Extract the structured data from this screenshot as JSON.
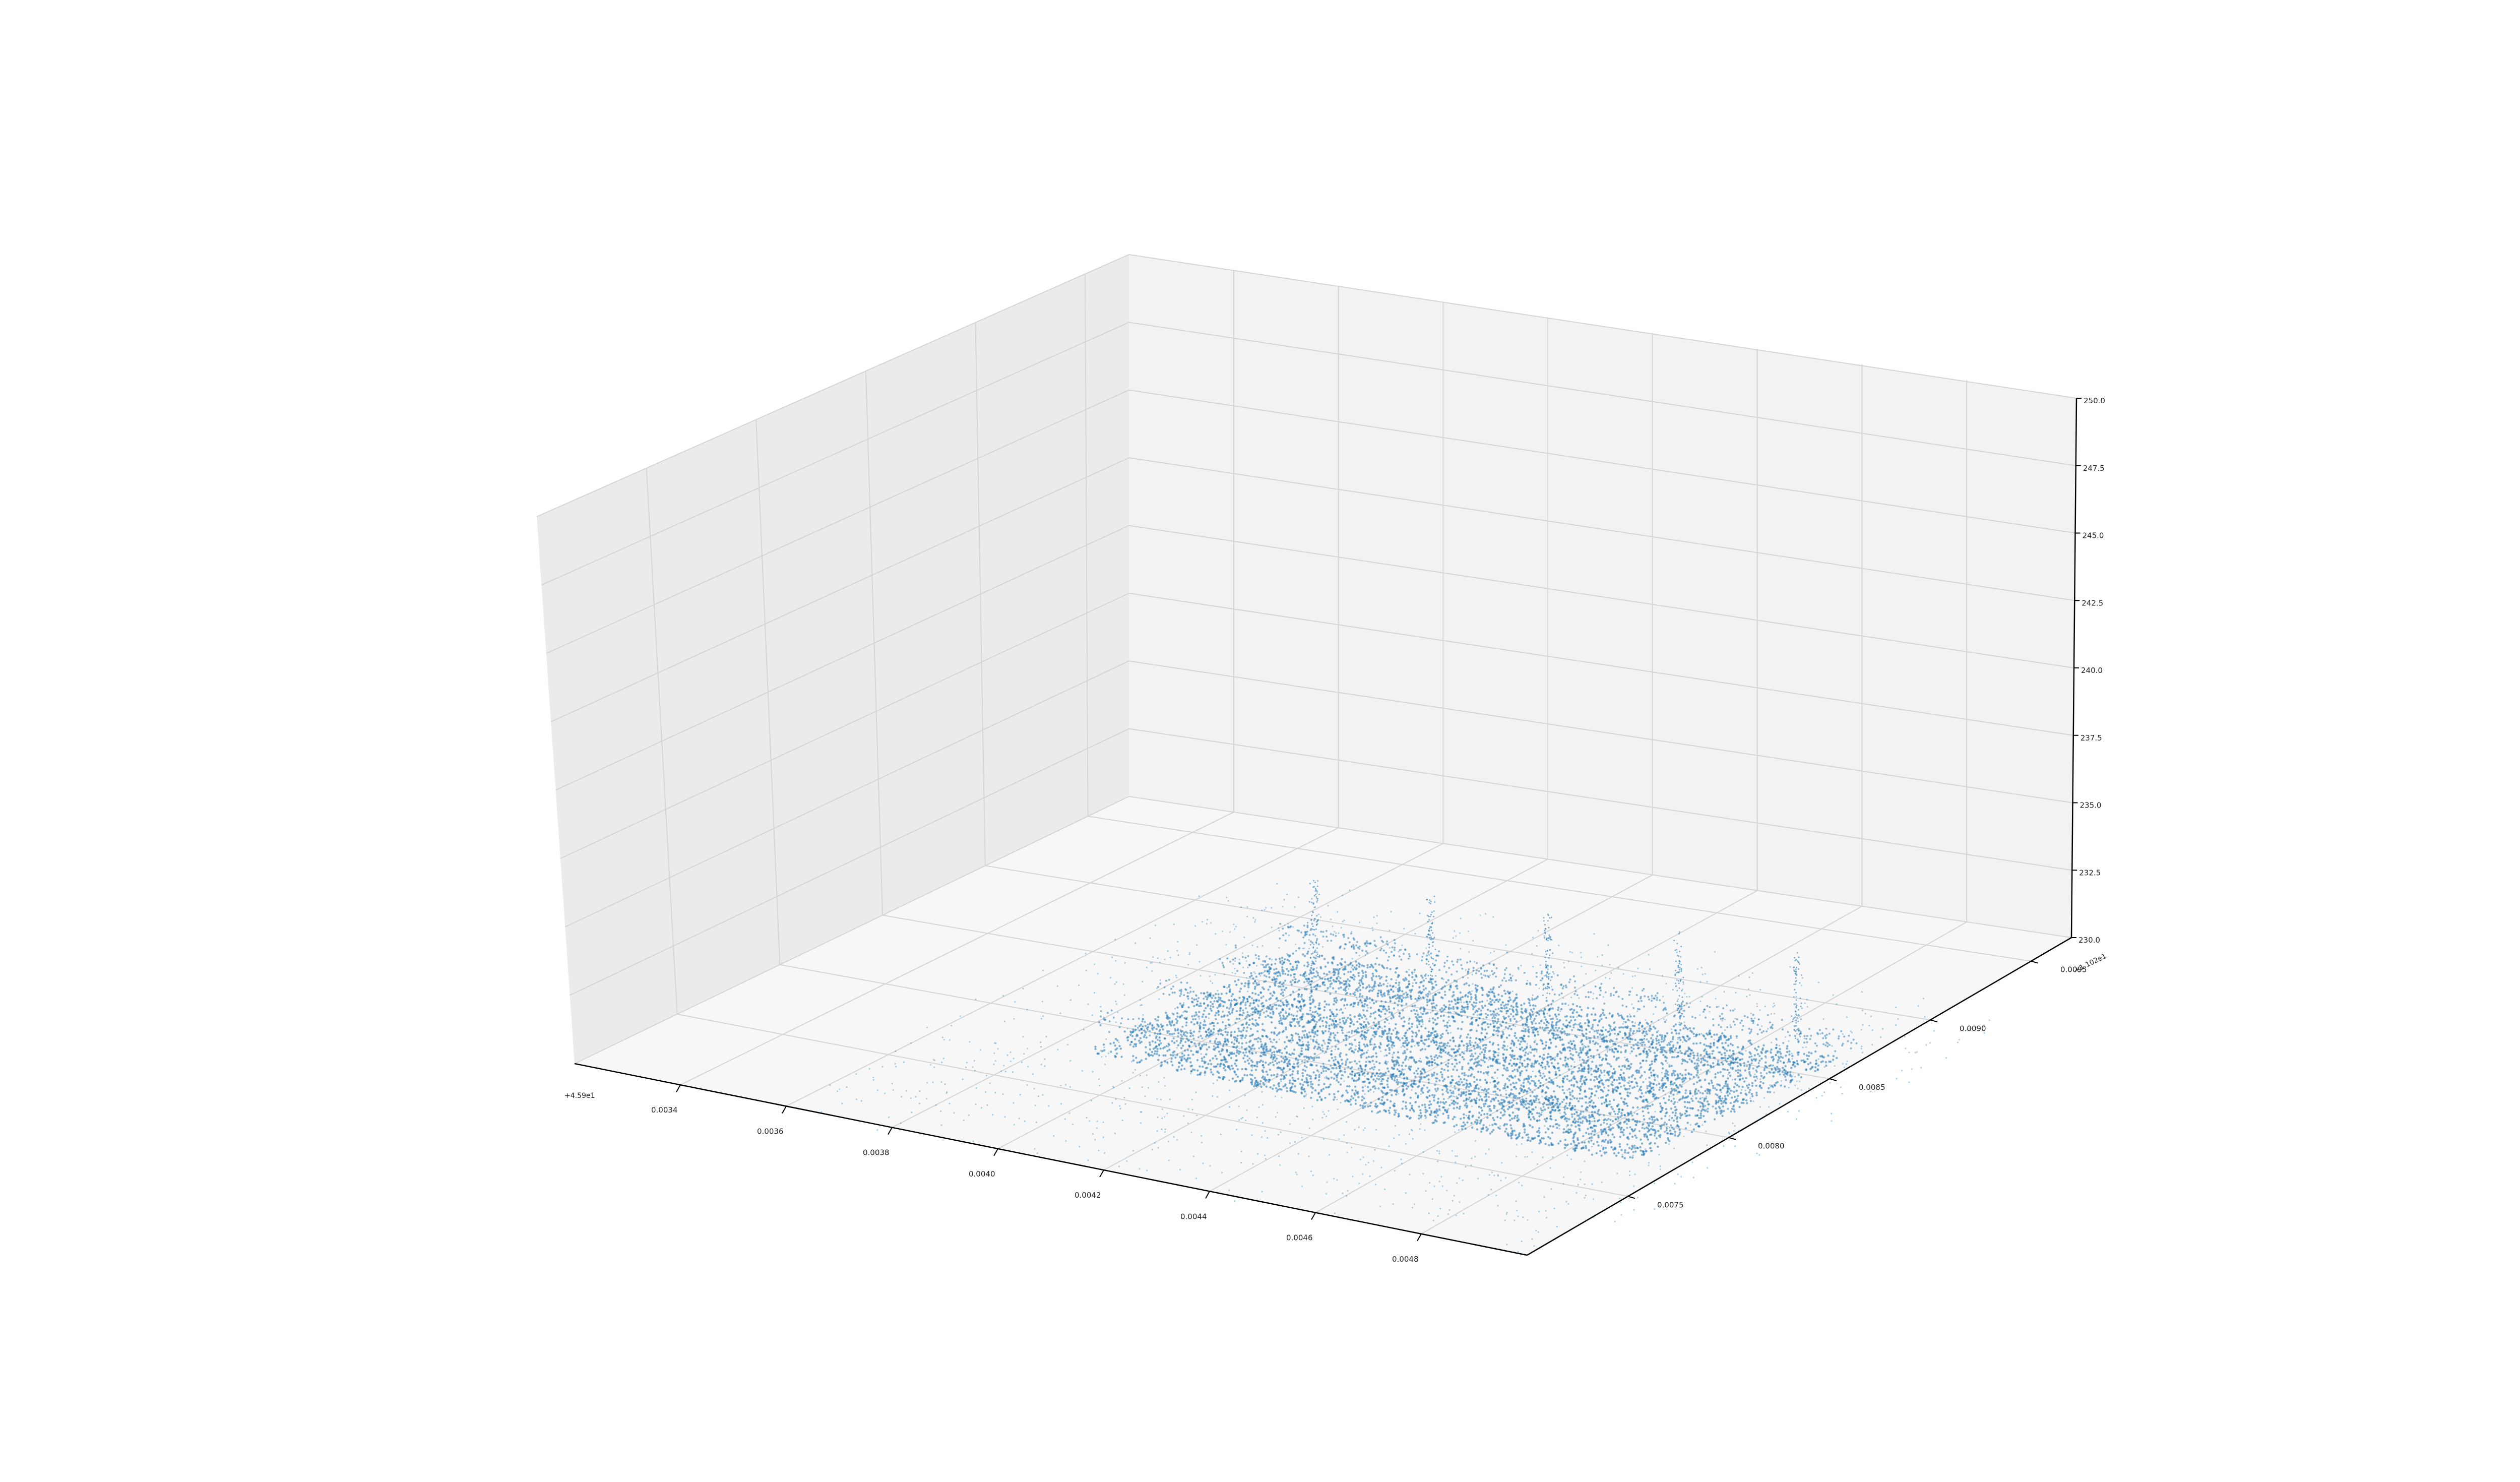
{
  "chart_data": {
    "type": "scatter",
    "projection": "3d",
    "title": "",
    "xlabel": "",
    "ylabel": "",
    "zlabel": "",
    "grid": true,
    "x_axis": {
      "offset_label": "+4.59e1",
      "ticks": [
        0.0034,
        0.0036,
        0.0038,
        0.004,
        0.0042,
        0.0044,
        0.0046,
        0.0048
      ],
      "tick_labels": [
        "0.0034",
        "0.0036",
        "0.0038",
        "0.0040",
        "0.0042",
        "0.0044",
        "0.0046",
        "0.0048"
      ],
      "range": [
        0.0032,
        0.005
      ]
    },
    "y_axis": {
      "offset_label": "+1.102e1",
      "ticks": [
        0.0075,
        0.008,
        0.0085,
        0.009,
        0.0095
      ],
      "tick_labels": [
        "0.0075",
        "0.0080",
        "0.0085",
        "0.0090",
        "0.0095"
      ],
      "range": [
        0.007,
        0.0097
      ]
    },
    "z_axis": {
      "ticks": [
        230.0,
        232.5,
        235.0,
        237.5,
        240.0,
        242.5,
        245.0,
        247.5,
        250.0
      ],
      "tick_labels": [
        "230.0",
        "232.5",
        "235.0",
        "237.5",
        "240.0",
        "242.5",
        "245.0",
        "247.5",
        "250.0"
      ],
      "range": [
        230.0,
        250.0
      ]
    },
    "series": [
      {
        "name": "point cloud",
        "color": "#1f77b4",
        "description_of_distribution": "dense cluster near z=230 spanning x 0.0038-0.0049, y 0.0075-0.0090, with sparse vertical streaks up to ~z 233"
      }
    ]
  },
  "colors": {
    "pane_back": "#f2f2f2",
    "pane_side": "#ebebeb",
    "pane_floor": "#f7f7f7",
    "grid": "#d5d5d5",
    "axis": "#000000",
    "points": "#1f77b4"
  }
}
